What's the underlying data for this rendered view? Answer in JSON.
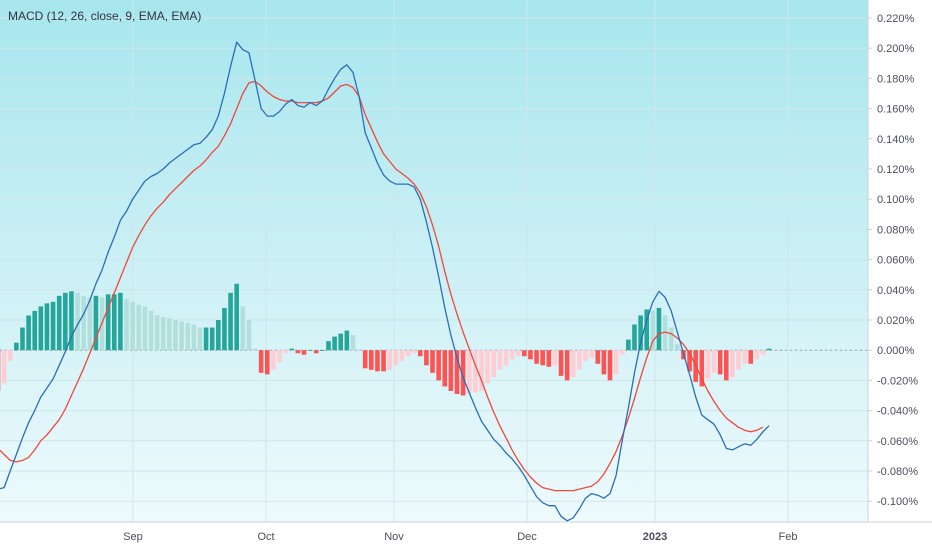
{
  "indicator_label": "MACD (12, 26, close, 9, EMA, EMA)",
  "colors": {
    "bg_top": "#a7e6ee",
    "bg_bottom": "#f2fbfd",
    "macd_line": "#2a6fb5",
    "signal_line": "#f0483c",
    "hist_pos_strong": "#26a69a",
    "hist_pos_weak": "#b2dfdb",
    "hist_neg_strong": "#ff5252",
    "hist_neg_weak": "#ffcdd2",
    "grid": "#cfe6ea",
    "zero_line": "#9aa4ad",
    "axis_text": "#4a4f5c"
  },
  "chart_data": {
    "type": "line",
    "title": "MACD (12, 26, close, 9, EMA, EMA)",
    "y_unit": "%",
    "ylim": [
      -0.11,
      0.22
    ],
    "y_ticks": [
      "0.220%",
      "0.200%",
      "0.180%",
      "0.160%",
      "0.140%",
      "0.120%",
      "0.100%",
      "0.080%",
      "0.060%",
      "0.040%",
      "0.020%",
      "0.000%",
      "-0.020%",
      "-0.040%",
      "-0.060%",
      "-0.080%",
      "-0.100%"
    ],
    "x_ticks": [
      "Sep",
      "Oct",
      "Nov",
      "Dec",
      "2023",
      "Feb"
    ],
    "grid": true,
    "series": [
      {
        "key": "macd",
        "values": [
          -0.092,
          -0.091,
          -0.08,
          -0.069,
          -0.058,
          -0.048,
          -0.04,
          -0.031,
          -0.025,
          -0.019,
          -0.01,
          -0.001,
          0.009,
          0.017,
          0.024,
          0.033,
          0.044,
          0.053,
          0.065,
          0.075,
          0.086,
          0.092,
          0.1,
          0.106,
          0.112,
          0.115,
          0.117,
          0.12,
          0.124,
          0.127,
          0.13,
          0.133,
          0.136,
          0.137,
          0.141,
          0.146,
          0.155,
          0.17,
          0.188,
          0.204,
          0.199,
          0.197,
          0.179,
          0.16,
          0.155,
          0.155,
          0.158,
          0.163,
          0.166,
          0.162,
          0.161,
          0.164,
          0.162,
          0.165,
          0.173,
          0.18,
          0.186,
          0.189,
          0.184,
          0.168,
          0.144,
          0.134,
          0.124,
          0.116,
          0.112,
          0.11,
          0.11,
          0.11,
          0.108,
          0.1,
          0.085,
          0.068,
          0.049,
          0.028,
          0.01,
          -0.005,
          -0.018,
          -0.028,
          -0.038,
          -0.047,
          -0.053,
          -0.059,
          -0.063,
          -0.068,
          -0.072,
          -0.077,
          -0.083,
          -0.09,
          -0.097,
          -0.101,
          -0.103,
          -0.103,
          -0.11,
          -0.113,
          -0.111,
          -0.105,
          -0.098,
          -0.095,
          -0.096,
          -0.098,
          -0.095,
          -0.083,
          -0.06,
          -0.038,
          -0.015,
          0.005,
          0.02,
          0.032,
          0.039,
          0.035,
          0.026,
          0.012,
          -0.002,
          -0.016,
          -0.031,
          -0.043,
          -0.046,
          -0.049,
          -0.056,
          -0.065,
          -0.066,
          -0.064,
          -0.062,
          -0.063,
          -0.059,
          -0.054,
          -0.05
        ]
      },
      {
        "key": "signal",
        "values": [
          -0.065,
          -0.069,
          -0.073,
          -0.074,
          -0.073,
          -0.071,
          -0.066,
          -0.06,
          -0.056,
          -0.051,
          -0.046,
          -0.039,
          -0.03,
          -0.021,
          -0.012,
          -0.002,
          0.008,
          0.018,
          0.028,
          0.038,
          0.048,
          0.058,
          0.068,
          0.076,
          0.083,
          0.089,
          0.094,
          0.098,
          0.103,
          0.107,
          0.111,
          0.115,
          0.119,
          0.122,
          0.126,
          0.131,
          0.135,
          0.142,
          0.15,
          0.16,
          0.17,
          0.177,
          0.178,
          0.175,
          0.171,
          0.168,
          0.166,
          0.165,
          0.165,
          0.164,
          0.164,
          0.164,
          0.164,
          0.165,
          0.167,
          0.171,
          0.175,
          0.176,
          0.174,
          0.168,
          0.156,
          0.147,
          0.138,
          0.13,
          0.125,
          0.12,
          0.117,
          0.114,
          0.11,
          0.104,
          0.095,
          0.083,
          0.069,
          0.052,
          0.037,
          0.024,
          0.012,
          0.001,
          -0.01,
          -0.02,
          -0.031,
          -0.041,
          -0.05,
          -0.058,
          -0.066,
          -0.073,
          -0.079,
          -0.084,
          -0.088,
          -0.091,
          -0.092,
          -0.093,
          -0.093,
          -0.093,
          -0.093,
          -0.092,
          -0.091,
          -0.09,
          -0.087,
          -0.082,
          -0.075,
          -0.067,
          -0.057,
          -0.045,
          -0.032,
          -0.018,
          -0.005,
          0.006,
          0.011,
          0.012,
          0.011,
          0.008,
          0.004,
          -0.002,
          -0.01,
          -0.019,
          -0.027,
          -0.034,
          -0.04,
          -0.045,
          -0.048,
          -0.051,
          -0.053,
          -0.054,
          -0.053,
          -0.051
        ]
      },
      {
        "key": "histogram",
        "type": "bar",
        "values": [
          -0.027,
          -0.022,
          -0.007,
          0.005,
          0.015,
          0.023,
          0.026,
          0.029,
          0.031,
          0.032,
          0.036,
          0.038,
          0.039,
          0.038,
          0.036,
          0.035,
          0.036,
          0.035,
          0.037,
          0.037,
          0.038,
          0.034,
          0.032,
          0.03,
          0.029,
          0.026,
          0.023,
          0.022,
          0.021,
          0.02,
          0.019,
          0.018,
          0.017,
          0.015,
          0.015,
          0.015,
          0.02,
          0.028,
          0.038,
          0.044,
          0.029,
          0.02,
          0.001,
          -0.015,
          -0.016,
          -0.013,
          -0.008,
          -0.002,
          0.001,
          -0.002,
          -0.003,
          0.0,
          -0.002,
          0.0,
          0.006,
          0.009,
          0.011,
          0.013,
          0.01,
          0.0,
          -0.012,
          -0.013,
          -0.014,
          -0.014,
          -0.013,
          -0.01,
          -0.007,
          -0.004,
          -0.002,
          -0.004,
          -0.01,
          -0.015,
          -0.02,
          -0.024,
          -0.027,
          -0.029,
          -0.03,
          -0.029,
          -0.028,
          -0.027,
          -0.022,
          -0.018,
          -0.013,
          -0.01,
          -0.006,
          -0.004,
          -0.004,
          -0.006,
          -0.009,
          -0.01,
          -0.011,
          -0.01,
          -0.017,
          -0.02,
          -0.018,
          -0.013,
          -0.007,
          -0.005,
          -0.009,
          -0.016,
          -0.02,
          -0.016,
          -0.003,
          0.007,
          0.017,
          0.023,
          0.027,
          0.026,
          0.028,
          0.023,
          0.015,
          0.004,
          -0.006,
          -0.014,
          -0.021,
          -0.024,
          -0.019,
          -0.015,
          -0.016,
          -0.02,
          -0.018,
          -0.013,
          -0.009,
          -0.009,
          -0.006,
          -0.003,
          0.001
        ]
      }
    ]
  }
}
